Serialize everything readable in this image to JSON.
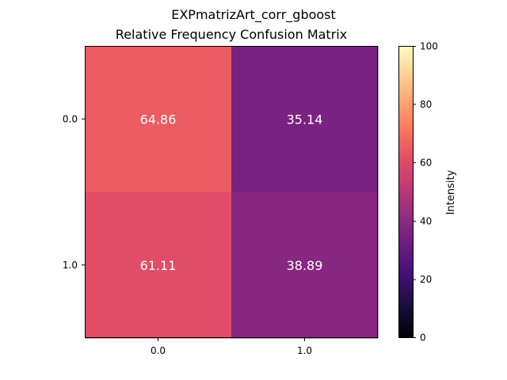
{
  "chart_data": {
    "type": "heatmap",
    "suptitle": "EXPmatrizArt_corr_gboost",
    "title": "Relative Frequency Confusion Matrix",
    "x_categories": [
      "0.0",
      "1.0"
    ],
    "y_categories": [
      "0.0",
      "1.0"
    ],
    "values": [
      [
        64.86,
        35.14
      ],
      [
        61.11,
        38.89
      ]
    ],
    "value_labels": [
      [
        "64.86",
        "35.14"
      ],
      [
        "61.11",
        "38.89"
      ]
    ],
    "colormap": "magma",
    "vmin": 0,
    "vmax": 100,
    "colorbar": {
      "label": "Intensity",
      "ticks": [
        "0",
        "20",
        "40",
        "60",
        "80",
        "100"
      ]
    },
    "grid": false
  }
}
